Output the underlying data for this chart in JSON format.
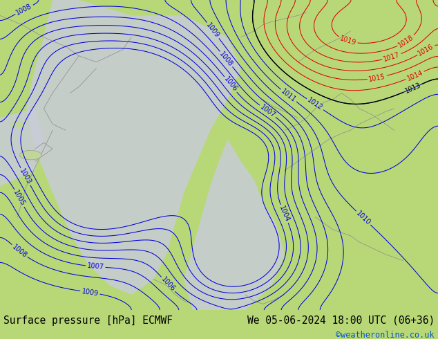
{
  "title_left": "Surface pressure [hPa] ECMWF",
  "title_right": "We 05-06-2024 18:00 UTC (06+36)",
  "copyright": "©weatheronline.co.uk",
  "bg_color": "#b8d878",
  "sea_color": "#c8ccd8",
  "contour_color_blue": "#0000dd",
  "contour_color_black": "#000000",
  "contour_color_red": "#dd0000",
  "footer_bg": "#c8dc90",
  "footer_text_color": "#000000",
  "copyright_color": "#0055cc",
  "font_size_footer": 10.5,
  "font_size_labels": 7
}
